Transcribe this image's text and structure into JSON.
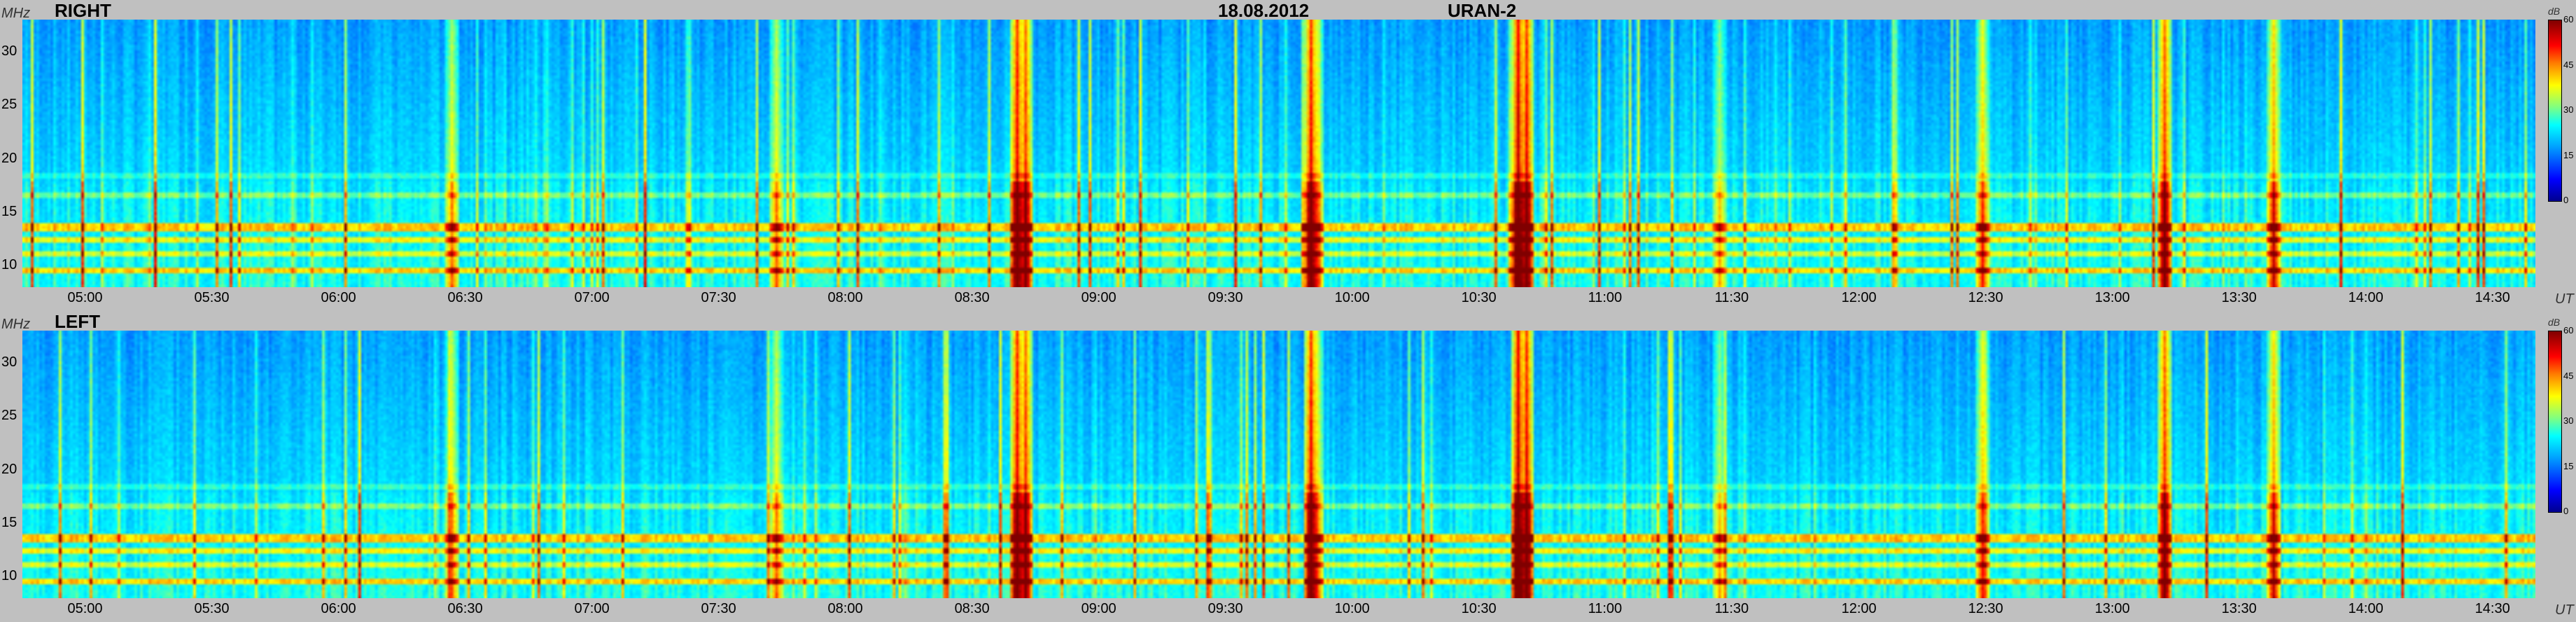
{
  "title": {
    "date": "18.08.2012",
    "instrument": "URAN-2"
  },
  "units": {
    "y": "MHz",
    "x": "UT",
    "colorbar": "dB"
  },
  "panels": [
    {
      "label": "RIGHT"
    },
    {
      "label": "LEFT"
    }
  ],
  "colors": {
    "background": "#c0c0c0"
  },
  "chart_data": [
    {
      "type": "heatmap",
      "title": "RIGHT",
      "xlabel": "UT",
      "ylabel": "MHz",
      "x_ticks": [
        "05:00",
        "05:30",
        "06:00",
        "06:30",
        "07:00",
        "07:30",
        "08:00",
        "08:30",
        "09:00",
        "09:30",
        "10:00",
        "10:30",
        "11:00",
        "11:30",
        "12:00",
        "12:30",
        "13:00",
        "13:30",
        "14:00",
        "14:30"
      ],
      "y_ticks": [
        10,
        15,
        20,
        25,
        30
      ],
      "ylim": [
        8,
        33
      ],
      "xlim": [
        "04:45",
        "14:40"
      ],
      "colorbar": {
        "label": "dB",
        "ticks": [
          0,
          15,
          30,
          45,
          60
        ]
      }
    },
    {
      "type": "heatmap",
      "title": "LEFT",
      "xlabel": "UT",
      "ylabel": "MHz",
      "x_ticks": [
        "05:00",
        "05:30",
        "06:00",
        "06:30",
        "07:00",
        "07:30",
        "08:00",
        "08:30",
        "09:00",
        "09:30",
        "10:00",
        "10:30",
        "11:00",
        "11:30",
        "12:00",
        "12:30",
        "13:00",
        "13:30",
        "14:00",
        "14:30"
      ],
      "y_ticks": [
        10,
        15,
        20,
        25,
        30
      ],
      "ylim": [
        8,
        33
      ],
      "xlim": [
        "04:45",
        "14:40"
      ],
      "colorbar": {
        "label": "dB",
        "ticks": [
          0,
          15,
          30,
          45,
          60
        ]
      }
    }
  ]
}
